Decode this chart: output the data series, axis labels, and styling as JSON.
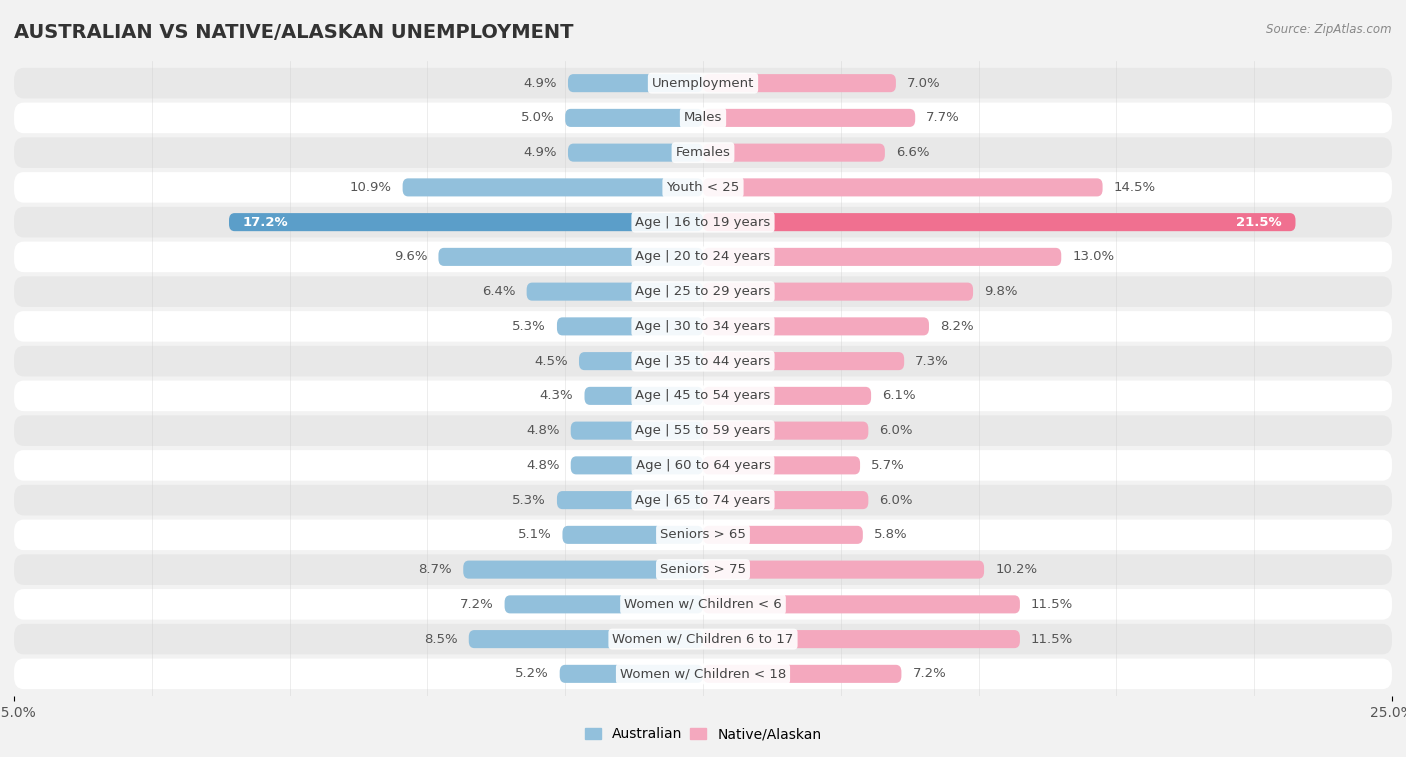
{
  "title": "AUSTRALIAN VS NATIVE/ALASKAN UNEMPLOYMENT",
  "source": "Source: ZipAtlas.com",
  "categories": [
    "Unemployment",
    "Males",
    "Females",
    "Youth < 25",
    "Age | 16 to 19 years",
    "Age | 20 to 24 years",
    "Age | 25 to 29 years",
    "Age | 30 to 34 years",
    "Age | 35 to 44 years",
    "Age | 45 to 54 years",
    "Age | 55 to 59 years",
    "Age | 60 to 64 years",
    "Age | 65 to 74 years",
    "Seniors > 65",
    "Seniors > 75",
    "Women w/ Children < 6",
    "Women w/ Children 6 to 17",
    "Women w/ Children < 18"
  ],
  "australian": [
    4.9,
    5.0,
    4.9,
    10.9,
    17.2,
    9.6,
    6.4,
    5.3,
    4.5,
    4.3,
    4.8,
    4.8,
    5.3,
    5.1,
    8.7,
    7.2,
    8.5,
    5.2
  ],
  "native_alaskan": [
    7.0,
    7.7,
    6.6,
    14.5,
    21.5,
    13.0,
    9.8,
    8.2,
    7.3,
    6.1,
    6.0,
    5.7,
    6.0,
    5.8,
    10.2,
    11.5,
    11.5,
    7.2
  ],
  "australian_color": "#92C0DC",
  "native_alaskan_color": "#F4A8BE",
  "highlight_australian_color": "#5B9EC9",
  "highlight_native_color": "#F07090",
  "max_value": 25.0,
  "bg_color": "#f2f2f2",
  "row_bg_light": "#ffffff",
  "row_bg_dark": "#e8e8e8",
  "title_fontsize": 14,
  "label_fontsize": 9.5,
  "tick_fontsize": 10,
  "value_fontsize": 9.5
}
